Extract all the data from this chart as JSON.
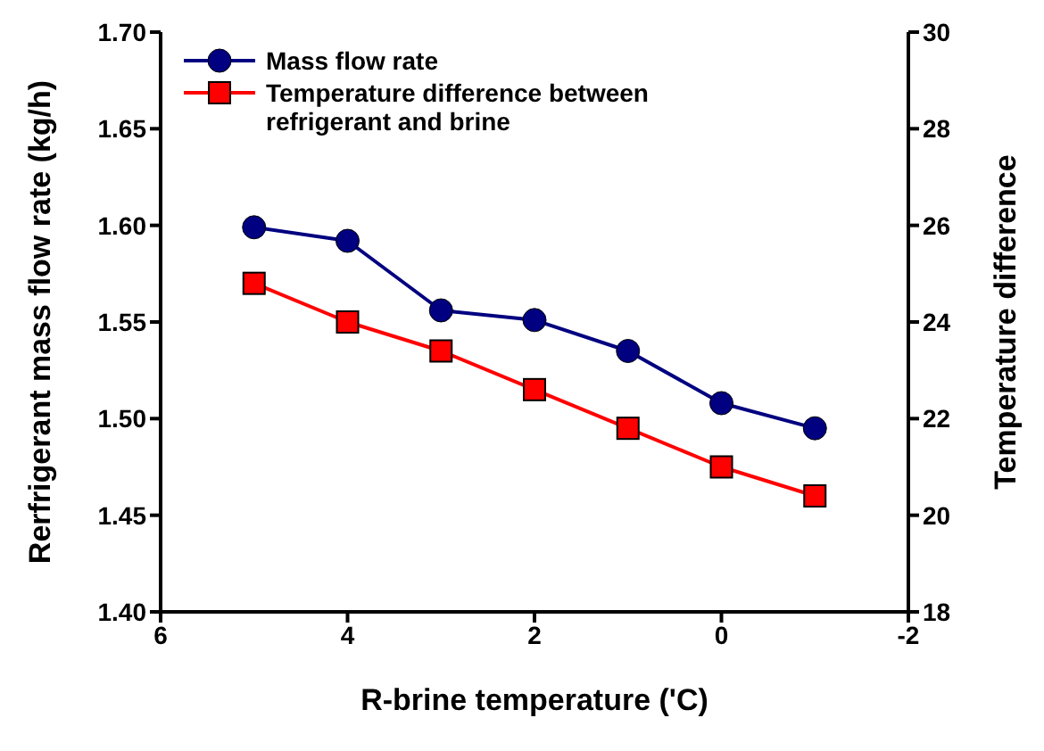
{
  "chart_data": {
    "type": "line",
    "xlabel": "R-brine temperature ('C)",
    "ylabel": "Rerfrigerant mass flow rate (kg/h)",
    "y2label": "Temperature difference",
    "x": [
      5,
      4,
      3,
      2,
      1,
      0,
      -1
    ],
    "series": [
      {
        "name": "Mass flow rate",
        "color": "#000080",
        "marker": "circle",
        "values": [
          1.599,
          1.592,
          1.556,
          1.551,
          1.535,
          1.508,
          1.495
        ]
      },
      {
        "name": "Temperature difference between refrigerant and brine",
        "color": "#ff0000",
        "marker": "square",
        "axis": "y2",
        "values": [
          24.8,
          24.0,
          23.4,
          22.6,
          21.8,
          21.0,
          20.4
        ]
      }
    ],
    "xlim": [
      6,
      -2
    ],
    "xticks": [
      6,
      4,
      2,
      0,
      -2
    ],
    "ylim": [
      1.4,
      1.7
    ],
    "yticks": [
      {
        "value": 1.4,
        "label": "1.40"
      },
      {
        "value": 1.45,
        "label": "1.45"
      },
      {
        "value": 1.5,
        "label": "1.50"
      },
      {
        "value": 1.55,
        "label": "1.55"
      },
      {
        "value": 1.6,
        "label": "1.60"
      },
      {
        "value": 1.65,
        "label": "1.65"
      },
      {
        "value": 1.7,
        "label": "1.70"
      }
    ],
    "y2lim": [
      18,
      30
    ],
    "y2ticks": [
      18,
      20,
      22,
      24,
      26,
      28,
      30
    ],
    "legend": "top left"
  }
}
